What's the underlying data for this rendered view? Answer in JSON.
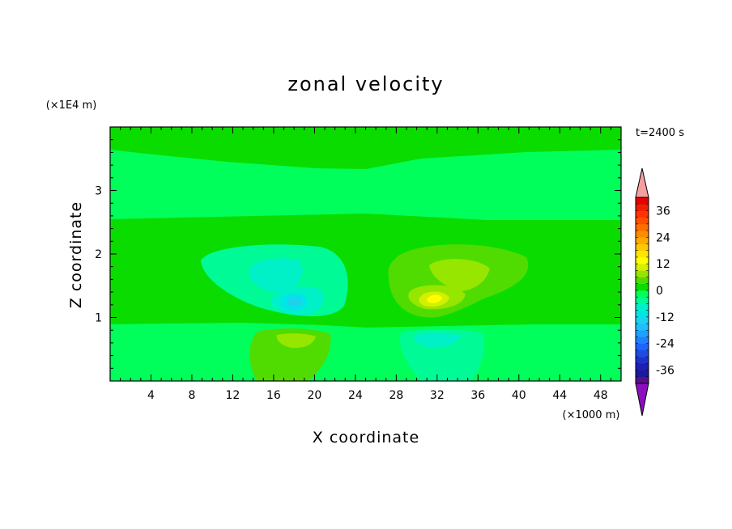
{
  "chart_data": {
    "type": "contour",
    "title": "zonal velocity",
    "xlabel": "X coordinate",
    "ylabel": "Z coordinate",
    "x_unit": "(×1000 m)",
    "y_unit": "(×1E4 m)",
    "time_label": "t=2400 s",
    "xlim": [
      0,
      50
    ],
    "ylim": [
      0,
      4
    ],
    "x_ticks": [
      4,
      8,
      12,
      16,
      20,
      24,
      28,
      32,
      36,
      40,
      44,
      48
    ],
    "y_ticks": [
      1,
      2,
      3
    ],
    "colorbar": {
      "levels": [
        -42,
        -39,
        -36,
        -33,
        -30,
        -27,
        -24,
        -21,
        -18,
        -15,
        -12,
        -9,
        -6,
        -3,
        0,
        3,
        6,
        9,
        12,
        15,
        18,
        21,
        24,
        27,
        30,
        33,
        36,
        39,
        42
      ],
      "colors": [
        "#5a0f8c",
        "#1a1a9e",
        "#1f1fb4",
        "#1f32c8",
        "#1e4be0",
        "#1e64ff",
        "#1e82ff",
        "#1ea0ff",
        "#1ebeff",
        "#1ed2ee",
        "#00e6e6",
        "#00f0c8",
        "#00fa96",
        "#00ff5a",
        "#0adc00",
        "#50dc00",
        "#96e600",
        "#d2f000",
        "#ffff00",
        "#ffe600",
        "#ffc800",
        "#ffaa00",
        "#ff8c00",
        "#ff6e00",
        "#ff5000",
        "#ff3200",
        "#f01e00",
        "#e60000"
      ],
      "under_color": "#8c0fbe",
      "over_color": "#f5a0a0",
      "tick_labels": [
        "-36",
        "-24",
        "-12",
        "0",
        "12",
        "24",
        "36"
      ]
    },
    "fields": {
      "background_bands_left": [
        {
          "z_from": 3.65,
          "z_to": 4.0,
          "value": 1
        },
        {
          "z_from": 2.55,
          "z_to": 3.65,
          "value": -1
        },
        {
          "z_from": 0.9,
          "z_to": 2.55,
          "value": 1
        },
        {
          "z_from": 0.0,
          "z_to": 0.9,
          "value": -1
        }
      ],
      "features": [
        {
          "x": 17,
          "z": 1.6,
          "min": -15
        },
        {
          "x": 18.5,
          "z": 1.3,
          "min": -16
        },
        {
          "x": 16.5,
          "z": 0.5,
          "max": 8
        },
        {
          "x": 31,
          "z": 1.4,
          "max": 12
        },
        {
          "x": 32,
          "z": 1.7,
          "max": 9
        },
        {
          "x": 31,
          "z": 0.6,
          "min": -9
        }
      ]
    }
  }
}
